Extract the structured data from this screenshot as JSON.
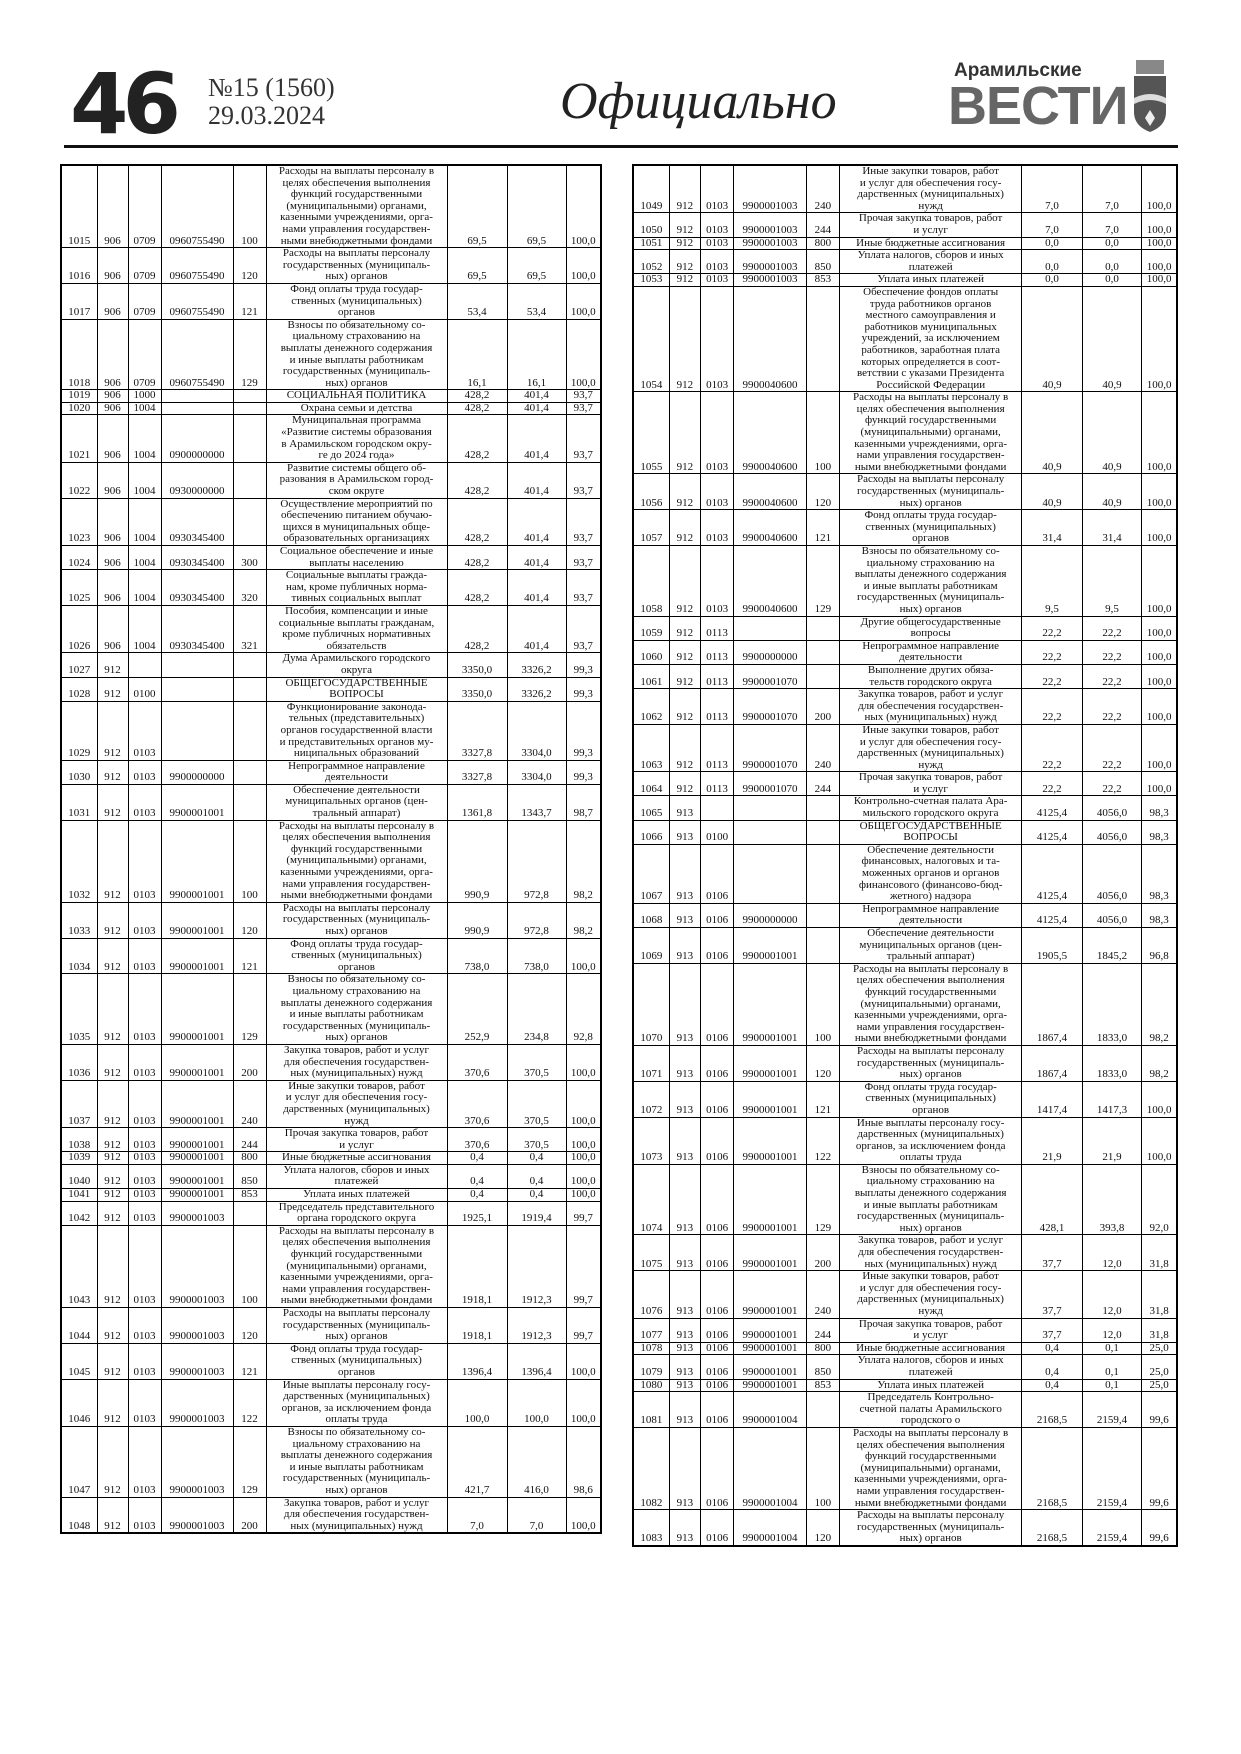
{
  "header": {
    "page_number": "46",
    "issue": "№15 (1560)",
    "date": "29.03.2024",
    "section": "Официально",
    "logo_top": "Арамильские",
    "logo_main": "ВЕСТИ"
  },
  "left_rows": [
    [
      "1015",
      "906",
      "0709",
      "0960755490",
      "100",
      "Расходы на выплаты персоналу в\nцелях обеспечения выполнения\nфункций государственными\n(муниципальными) органами,\nказенными учреждениями, орга-\nнами управления государствен-\nными внебюджетными фондами",
      "69,5",
      "69,5",
      "100,0"
    ],
    [
      "1016",
      "906",
      "0709",
      "0960755490",
      "120",
      "Расходы на выплаты персоналу\nгосударственных (муниципаль-\nных) органов",
      "69,5",
      "69,5",
      "100,0"
    ],
    [
      "1017",
      "906",
      "0709",
      "0960755490",
      "121",
      "Фонд оплаты труда государ-\nственных (муниципальных)\nорганов",
      "53,4",
      "53,4",
      "100,0"
    ],
    [
      "1018",
      "906",
      "0709",
      "0960755490",
      "129",
      "Взносы по обязательному со-\nциальному страхованию на\nвыплаты денежного содержания\nи иные выплаты работникам\nгосударственных (муниципаль-\nных) органов",
      "16,1",
      "16,1",
      "100,0"
    ],
    [
      "1019",
      "906",
      "1000",
      "",
      "",
      "СОЦИАЛЬНАЯ ПОЛИТИКА",
      "428,2",
      "401,4",
      "93,7"
    ],
    [
      "1020",
      "906",
      "1004",
      "",
      "",
      "Охрана семьи и детства",
      "428,2",
      "401,4",
      "93,7"
    ],
    [
      "1021",
      "906",
      "1004",
      "0900000000",
      "",
      "Муниципальная программа\n«Развитие системы образования\nв Арамильском городском окру-\nге до 2024 года»",
      "428,2",
      "401,4",
      "93,7"
    ],
    [
      "1022",
      "906",
      "1004",
      "0930000000",
      "",
      "Развитие системы общего об-\nразования в Арамильском город-\nском округе",
      "428,2",
      "401,4",
      "93,7"
    ],
    [
      "1023",
      "906",
      "1004",
      "0930345400",
      "",
      "Осуществление мероприятий по\nобеспечению питанием обучаю-\nщихся в муниципальных обще-\nобразовательных организациях",
      "428,2",
      "401,4",
      "93,7"
    ],
    [
      "1024",
      "906",
      "1004",
      "0930345400",
      "300",
      "Социальное обеспечение и иные\nвыплаты населению",
      "428,2",
      "401,4",
      "93,7"
    ],
    [
      "1025",
      "906",
      "1004",
      "0930345400",
      "320",
      "Социальные выплаты гражда-\nнам, кроме публичных норма-\nтивных социальных выплат",
      "428,2",
      "401,4",
      "93,7"
    ],
    [
      "1026",
      "906",
      "1004",
      "0930345400",
      "321",
      "Пособия, компенсации и иные\nсоциальные выплаты гражданам,\nкроме публичных нормативных\nобязательств",
      "428,2",
      "401,4",
      "93,7"
    ],
    [
      "1027",
      "912",
      "",
      "",
      "",
      "Дума Арамильского городского\nокруга",
      "3350,0",
      "3326,2",
      "99,3"
    ],
    [
      "1028",
      "912",
      "0100",
      "",
      "",
      "ОБЩЕГОСУДАРСТВЕННЫЕ\nВОПРОСЫ",
      "3350,0",
      "3326,2",
      "99,3"
    ],
    [
      "1029",
      "912",
      "0103",
      "",
      "",
      "Функционирование законода-\nтельных (представительных)\nорганов государственной власти\nи представительных органов му-\nниципальных образований",
      "3327,8",
      "3304,0",
      "99,3"
    ],
    [
      "1030",
      "912",
      "0103",
      "9900000000",
      "",
      "Непрограммное направление\nдеятельности",
      "3327,8",
      "3304,0",
      "99,3"
    ],
    [
      "1031",
      "912",
      "0103",
      "9900001001",
      "",
      "Обеспечение деятельности\nмуниципальных органов (цен-\nтральный аппарат)",
      "1361,8",
      "1343,7",
      "98,7"
    ],
    [
      "1032",
      "912",
      "0103",
      "9900001001",
      "100",
      "Расходы на выплаты персоналу в\nцелях обеспечения выполнения\nфункций государственными\n(муниципальными) органами,\nказенными учреждениями, орга-\nнами управления государствен-\nными внебюджетными фондами",
      "990,9",
      "972,8",
      "98,2"
    ],
    [
      "1033",
      "912",
      "0103",
      "9900001001",
      "120",
      "Расходы на выплаты персоналу\nгосударственных (муниципаль-\nных) органов",
      "990,9",
      "972,8",
      "98,2"
    ],
    [
      "1034",
      "912",
      "0103",
      "9900001001",
      "121",
      "Фонд оплаты труда государ-\nственных (муниципальных)\nорганов",
      "738,0",
      "738,0",
      "100,0"
    ],
    [
      "1035",
      "912",
      "0103",
      "9900001001",
      "129",
      "Взносы по обязательному со-\nциальному страхованию на\nвыплаты денежного содержания\nи иные выплаты работникам\nгосударственных (муниципаль-\nных) органов",
      "252,9",
      "234,8",
      "92,8"
    ],
    [
      "1036",
      "912",
      "0103",
      "9900001001",
      "200",
      "Закупка товаров, работ и услуг\nдля обеспечения государствен-\nных (муниципальных) нужд",
      "370,6",
      "370,5",
      "100,0"
    ],
    [
      "1037",
      "912",
      "0103",
      "9900001001",
      "240",
      "Иные закупки товаров, работ\nи услуг для обеспечения госу-\nдарственных (муниципальных)\nнужд",
      "370,6",
      "370,5",
      "100,0"
    ],
    [
      "1038",
      "912",
      "0103",
      "9900001001",
      "244",
      "Прочая закупка товаров, работ\nи услуг",
      "370,6",
      "370,5",
      "100,0"
    ],
    [
      "1039",
      "912",
      "0103",
      "9900001001",
      "800",
      "Иные бюджетные ассигнования",
      "0,4",
      "0,4",
      "100,0"
    ],
    [
      "1040",
      "912",
      "0103",
      "9900001001",
      "850",
      "Уплата налогов, сборов и иных\nплатежей",
      "0,4",
      "0,4",
      "100,0"
    ],
    [
      "1041",
      "912",
      "0103",
      "9900001001",
      "853",
      "Уплата иных платежей",
      "0,4",
      "0,4",
      "100,0"
    ],
    [
      "1042",
      "912",
      "0103",
      "9900001003",
      "",
      "Председатель представительного\nоргана городского округа",
      "1925,1",
      "1919,4",
      "99,7"
    ],
    [
      "1043",
      "912",
      "0103",
      "9900001003",
      "100",
      "Расходы на выплаты персоналу в\nцелях обеспечения выполнения\nфункций государственными\n(муниципальными) органами,\nказенными учреждениями, орга-\nнами управления государствен-\nными внебюджетными фондами",
      "1918,1",
      "1912,3",
      "99,7"
    ],
    [
      "1044",
      "912",
      "0103",
      "9900001003",
      "120",
      "Расходы на выплаты персоналу\nгосударственных (муниципаль-\nных) органов",
      "1918,1",
      "1912,3",
      "99,7"
    ],
    [
      "1045",
      "912",
      "0103",
      "9900001003",
      "121",
      "Фонд оплаты труда государ-\nственных (муниципальных)\nорганов",
      "1396,4",
      "1396,4",
      "100,0"
    ],
    [
      "1046",
      "912",
      "0103",
      "9900001003",
      "122",
      "Иные выплаты персоналу госу-\nдарственных (муниципальных)\nорганов, за исключением фонда\nоплаты труда",
      "100,0",
      "100,0",
      "100,0"
    ],
    [
      "1047",
      "912",
      "0103",
      "9900001003",
      "129",
      "Взносы по обязательному со-\nциальному страхованию на\nвыплаты денежного содержания\nи иные выплаты работникам\nгосударственных (муниципаль-\nных) органов",
      "421,7",
      "416,0",
      "98,6"
    ],
    [
      "1048",
      "912",
      "0103",
      "9900001003",
      "200",
      "Закупка товаров, работ и услуг\nдля обеспечения государствен-\nных (муниципальных) нужд",
      "7,0",
      "7,0",
      "100,0"
    ]
  ],
  "right_rows": [
    [
      "1049",
      "912",
      "0103",
      "9900001003",
      "240",
      "Иные закупки товаров, работ\nи услуг для обеспечения госу-\nдарственных (муниципальных)\nнужд",
      "7,0",
      "7,0",
      "100,0"
    ],
    [
      "1050",
      "912",
      "0103",
      "9900001003",
      "244",
      "Прочая закупка товаров, работ\nи услуг",
      "7,0",
      "7,0",
      "100,0"
    ],
    [
      "1051",
      "912",
      "0103",
      "9900001003",
      "800",
      "Иные бюджетные ассигнования",
      "0,0",
      "0,0",
      "100,0"
    ],
    [
      "1052",
      "912",
      "0103",
      "9900001003",
      "850",
      "Уплата налогов, сборов и иных\nплатежей",
      "0,0",
      "0,0",
      "100,0"
    ],
    [
      "1053",
      "912",
      "0103",
      "9900001003",
      "853",
      "Уплата иных платежей",
      "0,0",
      "0,0",
      "100,0"
    ],
    [
      "1054",
      "912",
      "0103",
      "9900040600",
      "",
      "Обеспечение фондов оплаты\nтруда работников органов\nместного самоуправления и\nработников муниципальных\nучреждений, за исключением\nработников, заработная плата\nкоторых определяется в соот-\nветствии с указами Президента\nРоссийской Федерации",
      "40,9",
      "40,9",
      "100,0"
    ],
    [
      "1055",
      "912",
      "0103",
      "9900040600",
      "100",
      "Расходы на выплаты персоналу в\nцелях обеспечения выполнения\nфункций государственными\n(муниципальными) органами,\nказенными учреждениями, орга-\nнами управления государствен-\nными внебюджетными фондами",
      "40,9",
      "40,9",
      "100,0"
    ],
    [
      "1056",
      "912",
      "0103",
      "9900040600",
      "120",
      "Расходы на выплаты персоналу\nгосударственных (муниципаль-\nных) органов",
      "40,9",
      "40,9",
      "100,0"
    ],
    [
      "1057",
      "912",
      "0103",
      "9900040600",
      "121",
      "Фонд оплаты труда государ-\nственных (муниципальных)\nорганов",
      "31,4",
      "31,4",
      "100,0"
    ],
    [
      "1058",
      "912",
      "0103",
      "9900040600",
      "129",
      "Взносы по обязательному со-\nциальному страхованию на\nвыплаты денежного содержания\nи иные выплаты работникам\nгосударственных (муниципаль-\nных) органов",
      "9,5",
      "9,5",
      "100,0"
    ],
    [
      "1059",
      "912",
      "0113",
      "",
      "",
      "Другие общегосударственные\nвопросы",
      "22,2",
      "22,2",
      "100,0"
    ],
    [
      "1060",
      "912",
      "0113",
      "9900000000",
      "",
      "Непрограммное направление\nдеятельности",
      "22,2",
      "22,2",
      "100,0"
    ],
    [
      "1061",
      "912",
      "0113",
      "9900001070",
      "",
      "Выполнение других обяза-\nтельств городского округа",
      "22,2",
      "22,2",
      "100,0"
    ],
    [
      "1062",
      "912",
      "0113",
      "9900001070",
      "200",
      "Закупка товаров, работ и услуг\nдля обеспечения государствен-\nных (муниципальных) нужд",
      "22,2",
      "22,2",
      "100,0"
    ],
    [
      "1063",
      "912",
      "0113",
      "9900001070",
      "240",
      "Иные закупки товаров, работ\nи услуг для обеспечения госу-\nдарственных (муниципальных)\nнужд",
      "22,2",
      "22,2",
      "100,0"
    ],
    [
      "1064",
      "912",
      "0113",
      "9900001070",
      "244",
      "Прочая закупка товаров, работ\nи услуг",
      "22,2",
      "22,2",
      "100,0"
    ],
    [
      "1065",
      "913",
      "",
      "",
      "",
      "Контрольно-счетная палата Ара-\nмильского городского округа",
      "4125,4",
      "4056,0",
      "98,3"
    ],
    [
      "1066",
      "913",
      "0100",
      "",
      "",
      "ОБЩЕГОСУДАРСТВЕННЫЕ\nВОПРОСЫ",
      "4125,4",
      "4056,0",
      "98,3"
    ],
    [
      "1067",
      "913",
      "0106",
      "",
      "",
      "Обеспечение деятельности\nфинансовых, налоговых и та-\nможенных органов и органов\nфинансового (финансово-бюд-\nжетного) надзора",
      "4125,4",
      "4056,0",
      "98,3"
    ],
    [
      "1068",
      "913",
      "0106",
      "9900000000",
      "",
      "Непрограммное направление\nдеятельности",
      "4125,4",
      "4056,0",
      "98,3"
    ],
    [
      "1069",
      "913",
      "0106",
      "9900001001",
      "",
      "Обеспечение деятельности\nмуниципальных органов (цен-\nтральный аппарат)",
      "1905,5",
      "1845,2",
      "96,8"
    ],
    [
      "1070",
      "913",
      "0106",
      "9900001001",
      "100",
      "Расходы на выплаты персоналу в\nцелях обеспечения выполнения\nфункций государственными\n(муниципальными) органами,\nказенными учреждениями, орга-\nнами управления государствен-\nными внебюджетными фондами",
      "1867,4",
      "1833,0",
      "98,2"
    ],
    [
      "1071",
      "913",
      "0106",
      "9900001001",
      "120",
      "Расходы на выплаты персоналу\nгосударственных (муниципаль-\nных) органов",
      "1867,4",
      "1833,0",
      "98,2"
    ],
    [
      "1072",
      "913",
      "0106",
      "9900001001",
      "121",
      "Фонд оплаты труда государ-\nственных (муниципальных)\nорганов",
      "1417,4",
      "1417,3",
      "100,0"
    ],
    [
      "1073",
      "913",
      "0106",
      "9900001001",
      "122",
      "Иные выплаты персоналу госу-\nдарственных (муниципальных)\nорганов, за исключением фонда\nоплаты труда",
      "21,9",
      "21,9",
      "100,0"
    ],
    [
      "1074",
      "913",
      "0106",
      "9900001001",
      "129",
      "Взносы по обязательному со-\nциальному страхованию на\nвыплаты денежного содержания\nи иные выплаты работникам\nгосударственных (муниципаль-\nных) органов",
      "428,1",
      "393,8",
      "92,0"
    ],
    [
      "1075",
      "913",
      "0106",
      "9900001001",
      "200",
      "Закупка товаров, работ и услуг\nдля обеспечения государствен-\nных (муниципальных) нужд",
      "37,7",
      "12,0",
      "31,8"
    ],
    [
      "1076",
      "913",
      "0106",
      "9900001001",
      "240",
      "Иные закупки товаров, работ\nи услуг для обеспечения госу-\nдарственных (муниципальных)\nнужд",
      "37,7",
      "12,0",
      "31,8"
    ],
    [
      "1077",
      "913",
      "0106",
      "9900001001",
      "244",
      "Прочая закупка товаров, работ\nи услуг",
      "37,7",
      "12,0",
      "31,8"
    ],
    [
      "1078",
      "913",
      "0106",
      "9900001001",
      "800",
      "Иные бюджетные ассигнования",
      "0,4",
      "0,1",
      "25,0"
    ],
    [
      "1079",
      "913",
      "0106",
      "9900001001",
      "850",
      "Уплата налогов, сборов и иных\nплатежей",
      "0,4",
      "0,1",
      "25,0"
    ],
    [
      "1080",
      "913",
      "0106",
      "9900001001",
      "853",
      "Уплата иных платежей",
      "0,4",
      "0,1",
      "25,0"
    ],
    [
      "1081",
      "913",
      "0106",
      "9900001004",
      "",
      "Председатель Контрольно-\nсчетной палаты Арамильского\nгородского о",
      "2168,5",
      "2159,4",
      "99,6"
    ],
    [
      "1082",
      "913",
      "0106",
      "9900001004",
      "100",
      "Расходы на выплаты персоналу в\nцелях обеспечения выполнения\nфункций государственными\n(муниципальными) органами,\nказенными учреждениями, орга-\nнами управления государствен-\nными внебюджетными фондами",
      "2168,5",
      "2159,4",
      "99,6"
    ],
    [
      "1083",
      "913",
      "0106",
      "9900001004",
      "120",
      "Расходы на выплаты персоналу\nгосударственных (муниципаль-\nных) органов",
      "2168,5",
      "2159,4",
      "99,6"
    ]
  ]
}
